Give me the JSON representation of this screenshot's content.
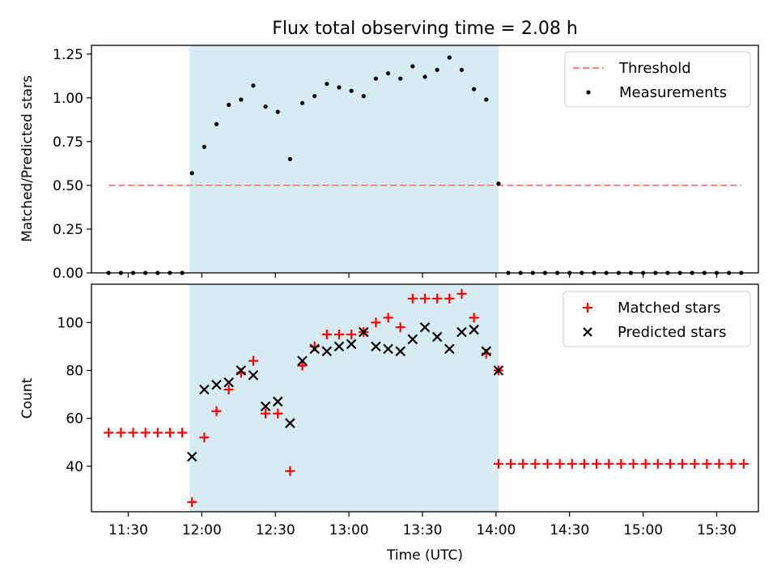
{
  "chart_data": [
    {
      "type": "scatter",
      "title": "Flux total observing time = 2.08 h",
      "xlabel": "",
      "ylabel": "Matched/Predicted stars",
      "ylim": [
        0,
        1.3
      ],
      "yticks": [
        "0.00",
        "0.25",
        "0.50",
        "0.75",
        "1.00",
        "1.25"
      ],
      "grid": false,
      "legend_position": "top-right",
      "observing_window": [
        "11:55",
        "14:01"
      ],
      "threshold": {
        "name": "Threshold",
        "value": 0.5,
        "x_range": [
          "11:22",
          "15:40"
        ],
        "color": "#ff7f7f"
      },
      "series": [
        {
          "name": "Measurements",
          "color": "#000000",
          "points": [
            [
              "11:22",
              0
            ],
            [
              "11:27",
              0
            ],
            [
              "11:32",
              0
            ],
            [
              "11:37",
              0
            ],
            [
              "11:42",
              0
            ],
            [
              "11:47",
              0
            ],
            [
              "11:52",
              0
            ],
            [
              "11:56",
              0.57
            ],
            [
              "12:01",
              0.72
            ],
            [
              "12:06",
              0.85
            ],
            [
              "12:11",
              0.96
            ],
            [
              "12:16",
              0.99
            ],
            [
              "12:21",
              1.07
            ],
            [
              "12:26",
              0.95
            ],
            [
              "12:31",
              0.92
            ],
            [
              "12:36",
              0.65
            ],
            [
              "12:41",
              0.97
            ],
            [
              "12:46",
              1.01
            ],
            [
              "12:51",
              1.08
            ],
            [
              "12:56",
              1.06
            ],
            [
              "13:01",
              1.04
            ],
            [
              "13:06",
              1.01
            ],
            [
              "13:11",
              1.11
            ],
            [
              "13:16",
              1.14
            ],
            [
              "13:21",
              1.11
            ],
            [
              "13:26",
              1.18
            ],
            [
              "13:31",
              1.12
            ],
            [
              "13:36",
              1.16
            ],
            [
              "13:41",
              1.23
            ],
            [
              "13:46",
              1.16
            ],
            [
              "13:51",
              1.05
            ],
            [
              "13:56",
              0.99
            ],
            [
              "14:01",
              0.51
            ],
            [
              "14:05",
              0
            ],
            [
              "14:10",
              0
            ],
            [
              "14:15",
              0
            ],
            [
              "14:20",
              0
            ],
            [
              "14:25",
              0
            ],
            [
              "14:30",
              0
            ],
            [
              "14:35",
              0
            ],
            [
              "14:40",
              0
            ],
            [
              "14:45",
              0
            ],
            [
              "14:50",
              0
            ],
            [
              "14:55",
              0
            ],
            [
              "15:00",
              0
            ],
            [
              "15:05",
              0
            ],
            [
              "15:10",
              0
            ],
            [
              "15:15",
              0
            ],
            [
              "15:20",
              0
            ],
            [
              "15:25",
              0
            ],
            [
              "15:30",
              0
            ],
            [
              "15:35",
              0
            ],
            [
              "15:40",
              0
            ]
          ]
        }
      ]
    },
    {
      "type": "scatter",
      "xlabel": "Time (UTC)",
      "ylabel": "Count",
      "ylim": [
        21,
        116
      ],
      "yticks": [
        "40",
        "60",
        "80",
        "100"
      ],
      "xlim": [
        "11:15",
        "15:47"
      ],
      "xticks": [
        "11:30",
        "12:00",
        "12:30",
        "13:00",
        "13:30",
        "14:00",
        "14:30",
        "15:00",
        "15:30"
      ],
      "grid": false,
      "legend_position": "top-right",
      "observing_window": [
        "11:55",
        "14:01"
      ],
      "series": [
        {
          "name": "Matched stars",
          "marker": "plus",
          "color": "#ff0000",
          "points": [
            [
              "11:22",
              54
            ],
            [
              "11:27",
              54
            ],
            [
              "11:32",
              54
            ],
            [
              "11:37",
              54
            ],
            [
              "11:42",
              54
            ],
            [
              "11:47",
              54
            ],
            [
              "11:52",
              54
            ],
            [
              "11:56",
              25
            ],
            [
              "12:01",
              52
            ],
            [
              "12:06",
              63
            ],
            [
              "12:11",
              72
            ],
            [
              "12:16",
              79
            ],
            [
              "12:21",
              84
            ],
            [
              "12:26",
              62
            ],
            [
              "12:31",
              62
            ],
            [
              "12:36",
              38
            ],
            [
              "12:41",
              82
            ],
            [
              "12:46",
              90
            ],
            [
              "12:51",
              95
            ],
            [
              "12:56",
              95
            ],
            [
              "13:01",
              95
            ],
            [
              "13:06",
              96
            ],
            [
              "13:11",
              100
            ],
            [
              "13:16",
              102
            ],
            [
              "13:21",
              98
            ],
            [
              "13:26",
              110
            ],
            [
              "13:31",
              110
            ],
            [
              "13:36",
              110
            ],
            [
              "13:41",
              110
            ],
            [
              "13:46",
              112
            ],
            [
              "13:51",
              102
            ],
            [
              "13:56",
              87
            ],
            [
              "14:01",
              80
            ],
            [
              "14:01",
              41
            ],
            [
              "14:06",
              41
            ],
            [
              "14:11",
              41
            ],
            [
              "14:16",
              41
            ],
            [
              "14:21",
              41
            ],
            [
              "14:26",
              41
            ],
            [
              "14:31",
              41
            ],
            [
              "14:36",
              41
            ],
            [
              "14:41",
              41
            ],
            [
              "14:46",
              41
            ],
            [
              "14:51",
              41
            ],
            [
              "14:56",
              41
            ],
            [
              "15:01",
              41
            ],
            [
              "15:06",
              41
            ],
            [
              "15:11",
              41
            ],
            [
              "15:16",
              41
            ],
            [
              "15:21",
              41
            ],
            [
              "15:26",
              41
            ],
            [
              "15:31",
              41
            ],
            [
              "15:36",
              41
            ],
            [
              "15:41",
              41
            ]
          ]
        },
        {
          "name": "Predicted stars",
          "marker": "x",
          "color": "#000000",
          "points": [
            [
              "11:56",
              44
            ],
            [
              "12:01",
              72
            ],
            [
              "12:06",
              74
            ],
            [
              "12:11",
              75
            ],
            [
              "12:16",
              80
            ],
            [
              "12:21",
              78
            ],
            [
              "12:26",
              65
            ],
            [
              "12:31",
              67
            ],
            [
              "12:36",
              58
            ],
            [
              "12:41",
              84
            ],
            [
              "12:46",
              89
            ],
            [
              "12:51",
              88
            ],
            [
              "12:56",
              90
            ],
            [
              "13:01",
              91
            ],
            [
              "13:06",
              96
            ],
            [
              "13:11",
              90
            ],
            [
              "13:16",
              89
            ],
            [
              "13:21",
              88
            ],
            [
              "13:26",
              93
            ],
            [
              "13:31",
              98
            ],
            [
              "13:36",
              94
            ],
            [
              "13:41",
              89
            ],
            [
              "13:46",
              96
            ],
            [
              "13:51",
              97
            ],
            [
              "13:56",
              88
            ],
            [
              "14:01",
              80
            ]
          ]
        }
      ]
    }
  ]
}
